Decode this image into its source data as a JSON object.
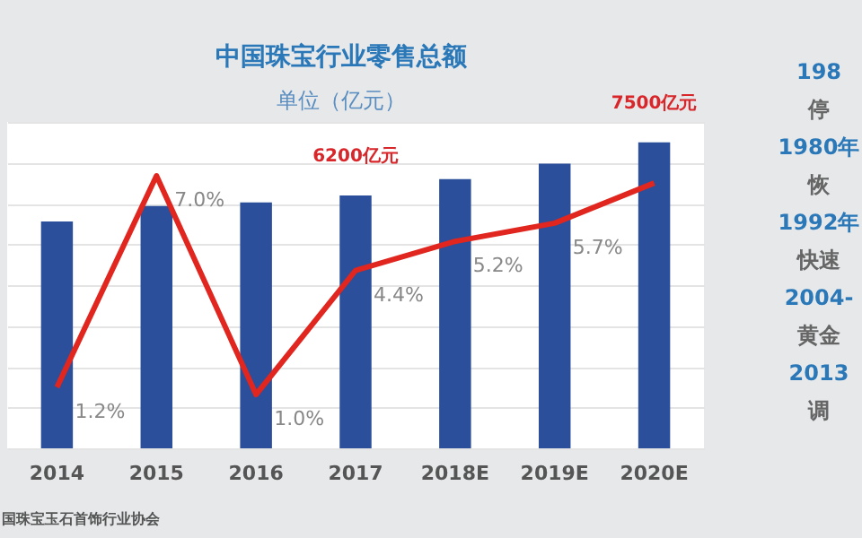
{
  "chart_data": {
    "type": "bar",
    "title": "中国珠宝行业零售总额",
    "subtitle": "单位（亿元）",
    "tick_labels": "x",
    "grid": "y",
    "categories": [
      "2014",
      "2015",
      "2016",
      "2017",
      "2018E",
      "2019E",
      "2020E"
    ],
    "series": [
      {
        "color": "#2b4f9a",
        "values": [
          5560,
          5940,
          6030,
          6200,
          6600,
          6980,
          7500
        ],
        "value_labels": [
          null,
          null,
          null,
          "6200亿元",
          null,
          null,
          "7500亿元"
        ]
      },
      {
        "type": "line",
        "axis": "y2",
        "color": "#e0261e",
        "values": [
          1.2,
          7.0,
          1.0,
          4.4,
          5.2,
          5.7,
          6.8
        ],
        "value_labels": [
          "1.2%",
          "7.0%",
          "1.0%",
          "4.4%",
          "5.2%",
          "5.7%",
          null
        ]
      }
    ],
    "annotations": [
      "国珠宝玉石首饰行业协会",
      "198",
      "停",
      "1980年",
      "恢",
      "1992年",
      "快速",
      "2004-",
      "黄金",
      "2013",
      "调"
    ]
  }
}
